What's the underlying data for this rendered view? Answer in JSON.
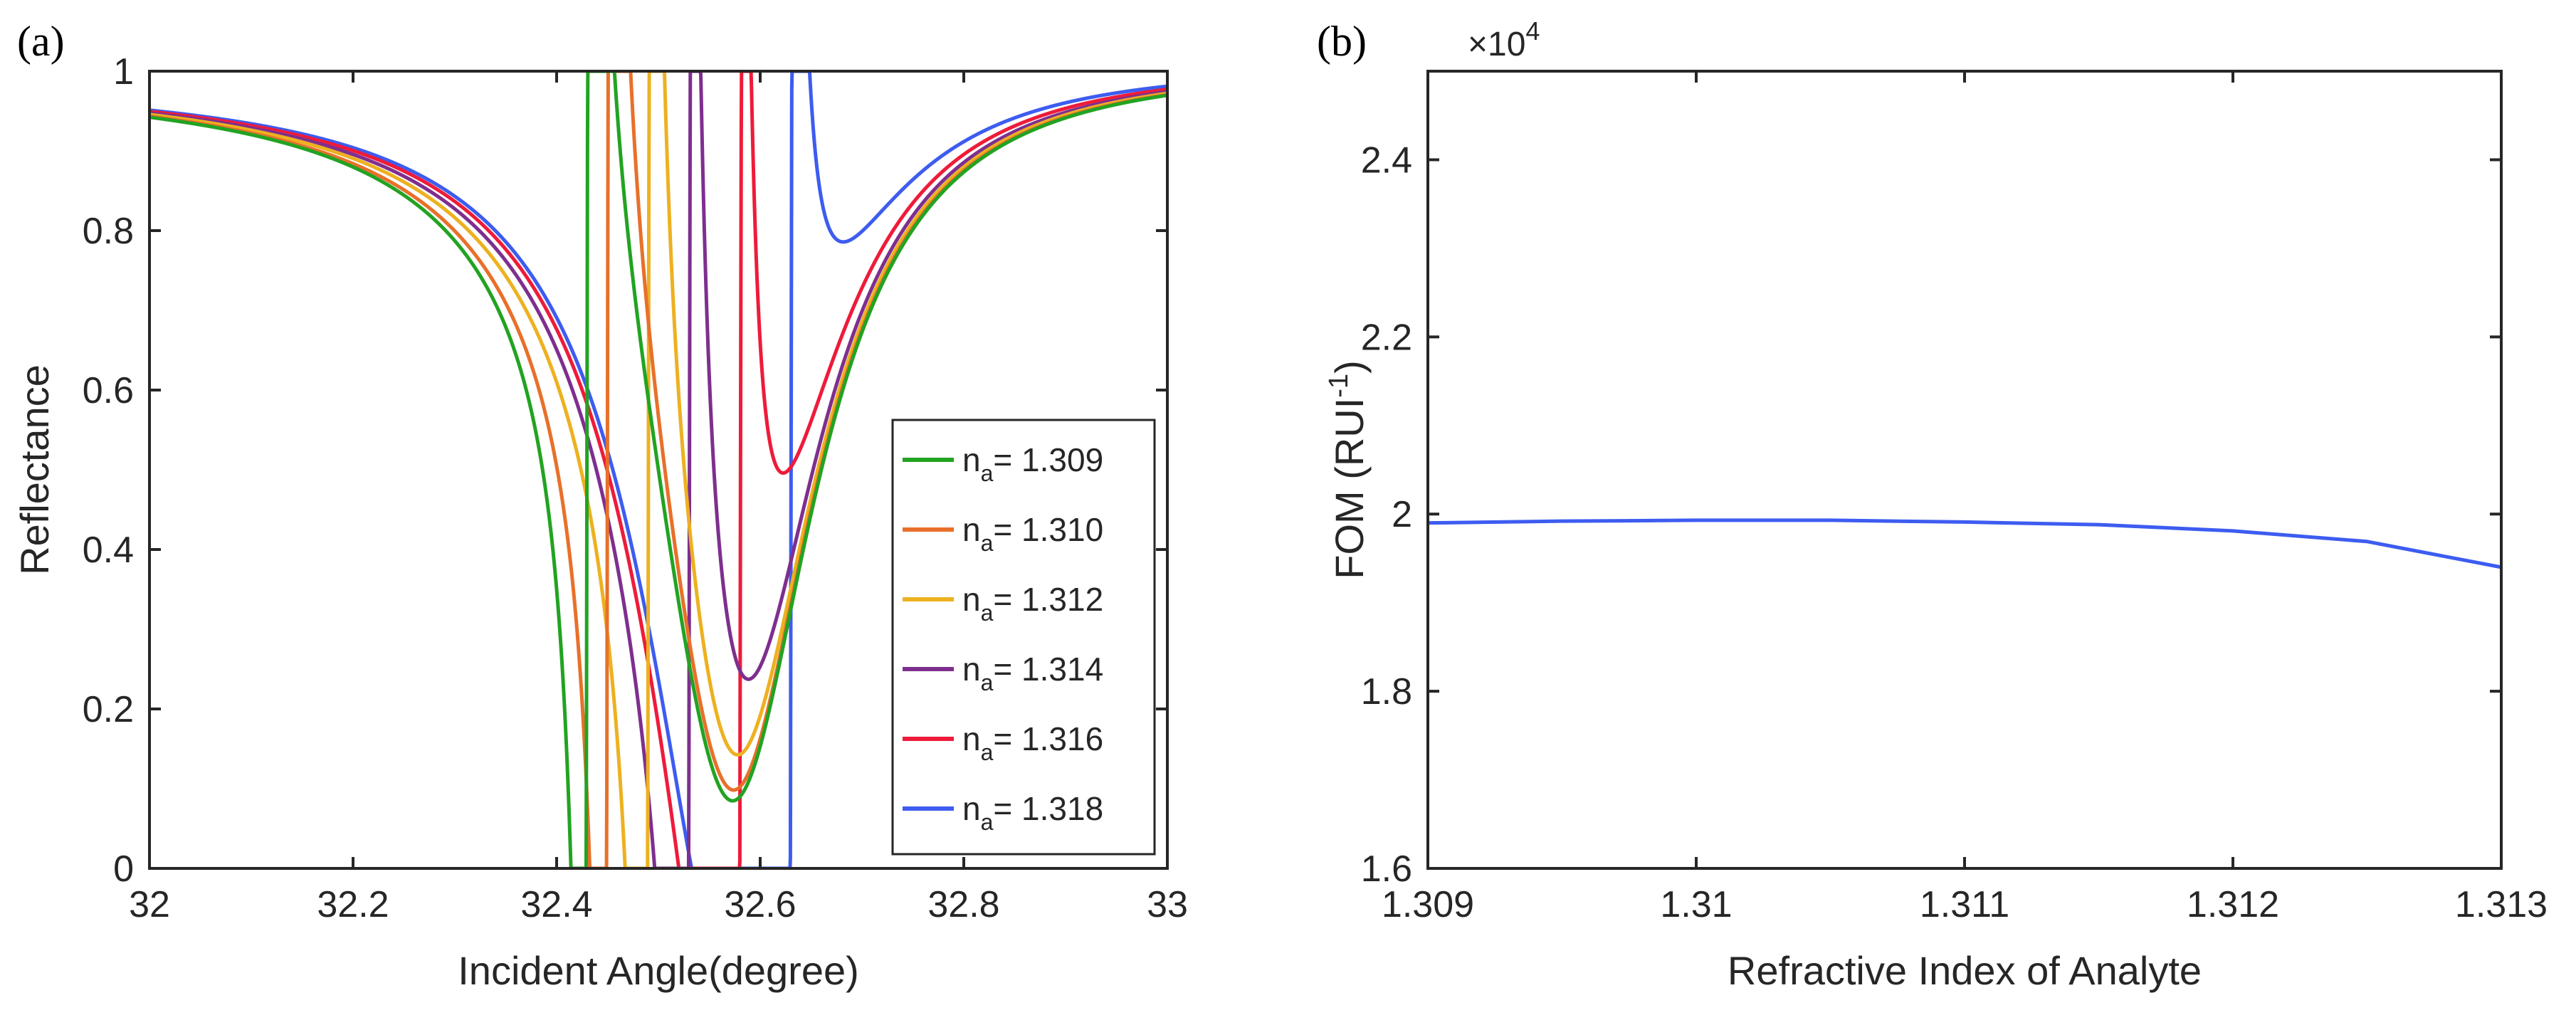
{
  "chart_data": [
    {
      "panel_label": "(a)",
      "type": "line",
      "title": "",
      "xlabel": "Incident Angle(degree)",
      "ylabel": "Reflectance",
      "xlim": [
        32,
        33
      ],
      "ylim": [
        0,
        1
      ],
      "xticks": [
        32,
        32.2,
        32.4,
        32.6,
        32.8,
        33
      ],
      "xtick_labels": [
        "32",
        "32.2",
        "32.4",
        "32.6",
        "32.8",
        "33"
      ],
      "yticks": [
        0,
        0.2,
        0.4,
        0.6,
        0.8,
        1
      ],
      "ytick_labels": [
        "0",
        "0.2",
        "0.4",
        "0.6",
        "0.8",
        "1"
      ],
      "grid": false,
      "legend_position": "bottom-right",
      "background_curve": {
        "center": 32.57,
        "width": 0.1,
        "depth": 1.0
      },
      "series": [
        {
          "name": "n",
          "subscript": "a",
          "value_label": "= 1.309",
          "color": "#22a322",
          "resonance_angle": 32.43,
          "width": 0.004
        },
        {
          "name": "n",
          "subscript": "a",
          "value_label": "= 1.310",
          "color": "#e8702a",
          "resonance_angle": 32.45,
          "width": 0.004
        },
        {
          "name": "n",
          "subscript": "a",
          "value_label": "= 1.312",
          "color": "#edb120",
          "resonance_angle": 32.49,
          "width": 0.004
        },
        {
          "name": "n",
          "subscript": "a",
          "value_label": "= 1.314",
          "color": "#7e2f8e",
          "resonance_angle": 32.53,
          "width": 0.004
        },
        {
          "name": "n",
          "subscript": "a",
          "value_label": "= 1.316",
          "color": "#ee1b3a",
          "resonance_angle": 32.58,
          "width": 0.004
        },
        {
          "name": "n",
          "subscript": "a",
          "value_label": "= 1.318",
          "color": "#3d5cf0",
          "resonance_angle": 32.63,
          "width": 0.004
        }
      ]
    },
    {
      "panel_label": "(b)",
      "type": "line",
      "title": "",
      "xlabel": "Refractive Index of Analyte",
      "ylabel_main": "FOM (RUI",
      "ylabel_sup": "-1",
      "ylabel_end": ")",
      "exponent_prefix": "×10",
      "exponent_power": "4",
      "xlim": [
        1.309,
        1.313
      ],
      "ylim": [
        1.6,
        2.5
      ],
      "xticks": [
        1.309,
        1.31,
        1.311,
        1.312,
        1.313
      ],
      "xtick_labels": [
        "1.309",
        "1.31",
        "1.311",
        "1.312",
        "1.313"
      ],
      "yticks": [
        1.6,
        1.8,
        2.0,
        2.2,
        2.4
      ],
      "ytick_labels": [
        "1.6",
        "1.8",
        "2",
        "2.2",
        "2.4"
      ],
      "grid": false,
      "series": [
        {
          "name": "FOM",
          "color": "#3d5cf0",
          "x": [
            1.309,
            1.3095,
            1.31,
            1.3105,
            1.311,
            1.3115,
            1.312,
            1.3125,
            1.313
          ],
          "y": [
            1.99,
            1.992,
            1.993,
            1.993,
            1.991,
            1.988,
            1.981,
            1.969,
            1.94
          ]
        }
      ]
    }
  ]
}
